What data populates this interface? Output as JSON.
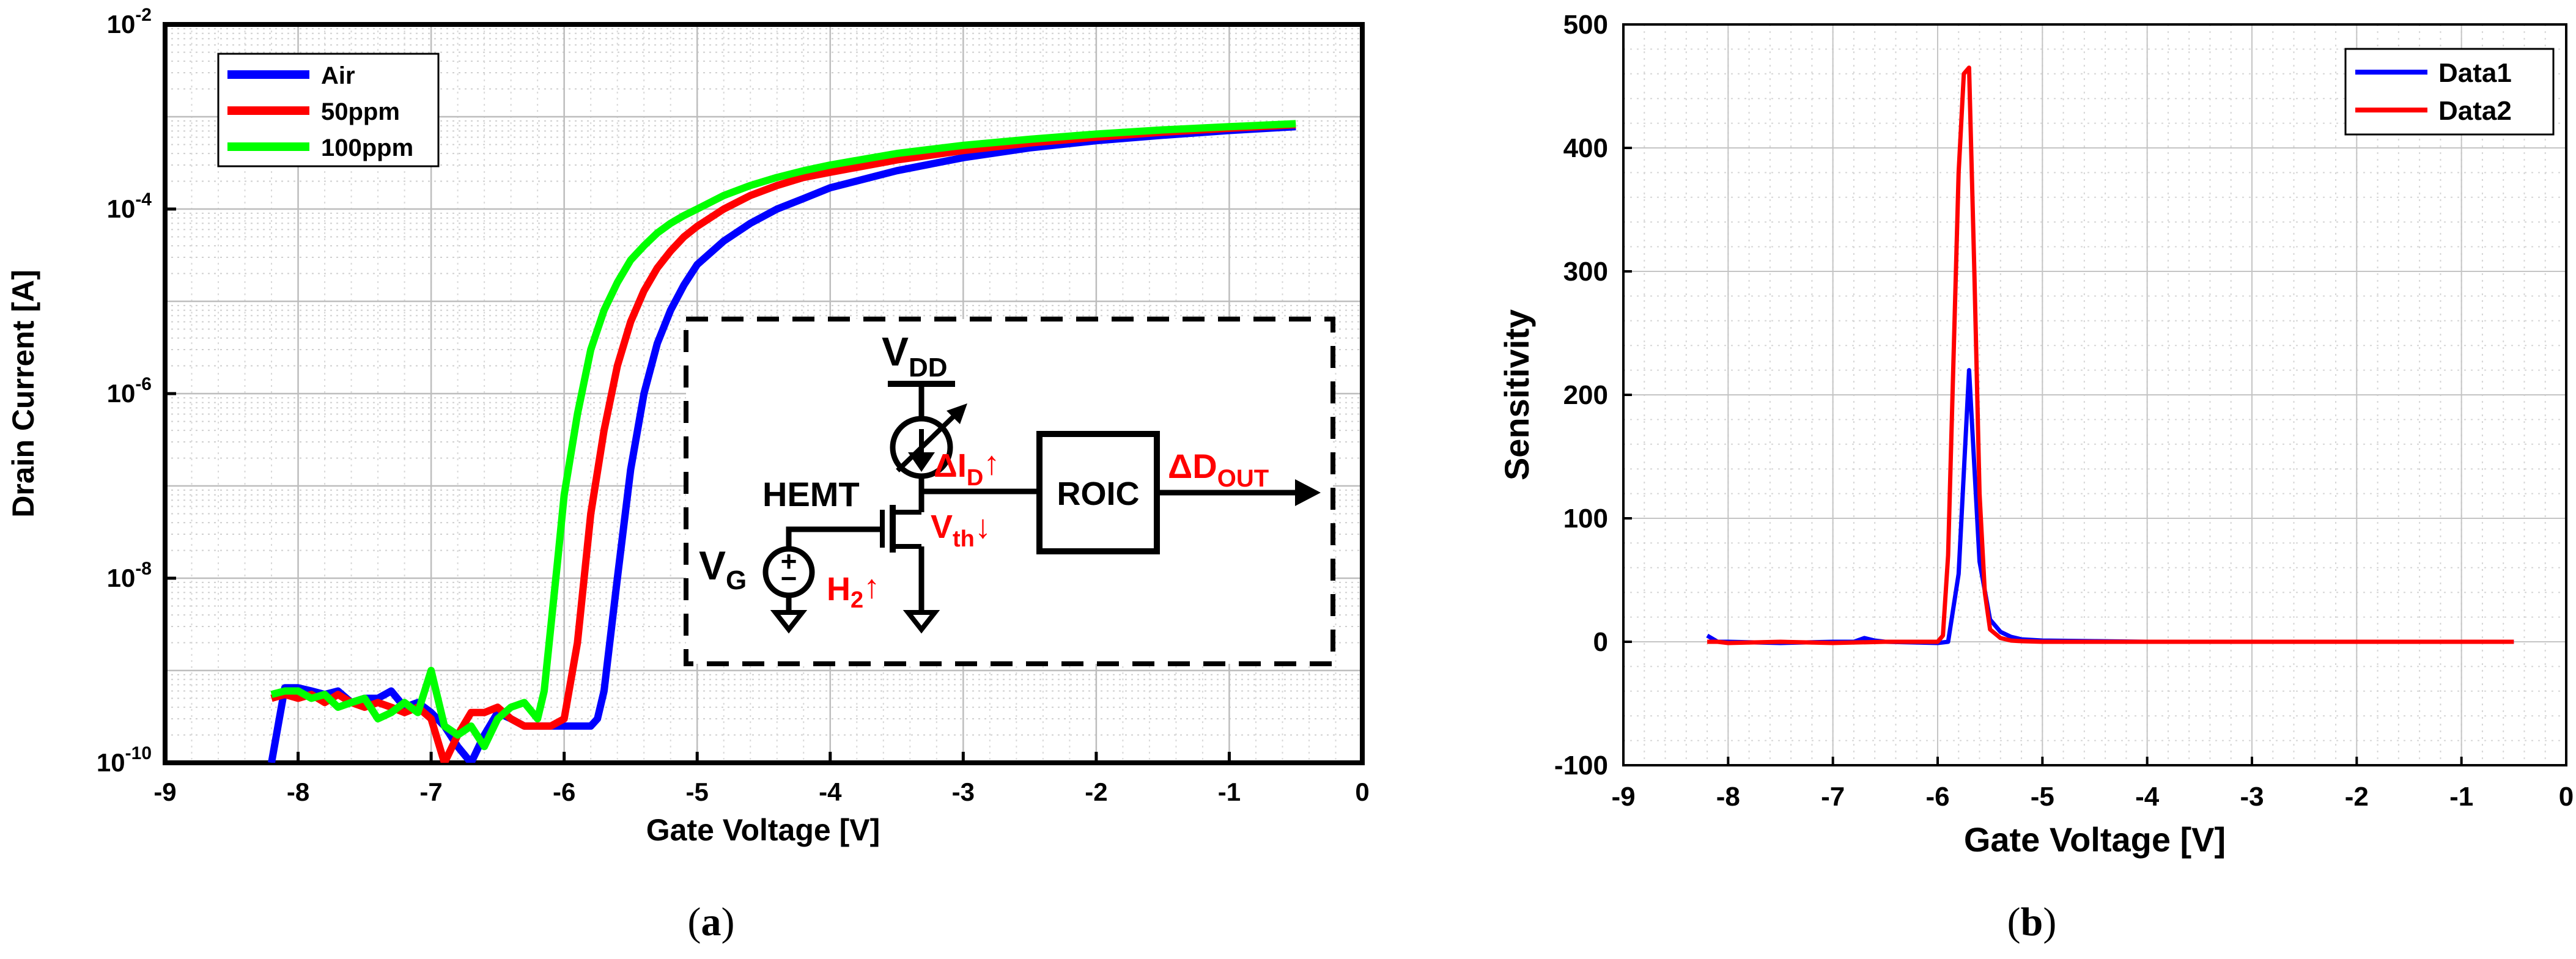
{
  "colors": {
    "blue": "#0000ff",
    "red": "#ff0000",
    "green": "#00ff00",
    "black": "#000000",
    "annot": "#ff0000"
  },
  "panels": {
    "a": "a",
    "b": "b"
  },
  "chart_data": [
    {
      "id": "a",
      "type": "line",
      "title": "",
      "xlabel": "Gate Voltage [V]",
      "ylabel": "Drain Current [A]",
      "yscale": "log",
      "xlim": [
        -9,
        0
      ],
      "ylim": [
        1e-10,
        0.01
      ],
      "xticks": [
        -9,
        -8,
        -7,
        -6,
        -5,
        -4,
        -3,
        -2,
        -1,
        0
      ],
      "yticks": [
        {
          "value": 1e-10,
          "base": "10",
          "exp": "-10"
        },
        {
          "value": 1e-08,
          "base": "10",
          "exp": "-8"
        },
        {
          "value": 1e-06,
          "base": "10",
          "exp": "-6"
        },
        {
          "value": 0.0001,
          "base": "10",
          "exp": "-4"
        },
        {
          "value": 0.01,
          "base": "10",
          "exp": "-2"
        }
      ],
      "grid": true,
      "legend_position": "top-left",
      "series": [
        {
          "name": "Air",
          "color": "#0000ff",
          "x": [
            -8.2,
            -8.1,
            -8.0,
            -7.9,
            -7.8,
            -7.7,
            -7.6,
            -7.5,
            -7.4,
            -7.3,
            -7.2,
            -7.1,
            -7.0,
            -6.9,
            -6.8,
            -6.7,
            -6.6,
            -6.5,
            -6.4,
            -6.3,
            -6.2,
            -6.1,
            -6.0,
            -5.9,
            -5.8,
            -5.75,
            -5.7,
            -5.6,
            -5.5,
            -5.4,
            -5.3,
            -5.2,
            -5.1,
            -5.0,
            -4.8,
            -4.6,
            -4.4,
            -4.2,
            -4.0,
            -3.5,
            -3.0,
            -2.5,
            -2.0,
            -1.5,
            -1.0,
            -0.5
          ],
          "y": [
            1e-10,
            6.5e-10,
            6.5e-10,
            6e-10,
            5.5e-10,
            6e-10,
            4.5e-10,
            5e-10,
            5e-10,
            6e-10,
            4e-10,
            4.5e-10,
            3.5e-10,
            2.5e-10,
            1.5e-10,
            1e-10,
            2e-10,
            3.5e-10,
            3e-10,
            2.5e-10,
            2.5e-10,
            2.5e-10,
            2.5e-10,
            2.5e-10,
            2.5e-10,
            3e-10,
            6e-10,
            1e-08,
            1.5e-07,
            1e-06,
            3.5e-06,
            8e-06,
            1.5e-05,
            2.5e-05,
            4.5e-05,
            7e-05,
            0.0001,
            0.00013,
            0.00017,
            0.00026,
            0.00036,
            0.00046,
            0.00055,
            0.00063,
            0.00071,
            0.00078
          ]
        },
        {
          "name": "50ppm",
          "color": "#ff0000",
          "x": [
            -8.2,
            -8.1,
            -8.0,
            -7.9,
            -7.8,
            -7.7,
            -7.6,
            -7.5,
            -7.4,
            -7.3,
            -7.2,
            -7.1,
            -7.0,
            -6.9,
            -6.8,
            -6.7,
            -6.6,
            -6.5,
            -6.4,
            -6.3,
            -6.2,
            -6.1,
            -6.0,
            -5.9,
            -5.85,
            -5.8,
            -5.7,
            -5.6,
            -5.5,
            -5.4,
            -5.3,
            -5.2,
            -5.1,
            -5.0,
            -4.8,
            -4.6,
            -4.4,
            -4.2,
            -4.0,
            -3.5,
            -3.0,
            -2.5,
            -2.0,
            -1.5,
            -1.0,
            -0.5
          ],
          "y": [
            5e-10,
            5.5e-10,
            5e-10,
            5.5e-10,
            4.5e-10,
            5.5e-10,
            4.5e-10,
            4e-10,
            4.5e-10,
            4e-10,
            3.5e-10,
            4e-10,
            3e-10,
            1e-10,
            2e-10,
            3.5e-10,
            3.5e-10,
            4e-10,
            3e-10,
            2.5e-10,
            2.5e-10,
            2.5e-10,
            3e-10,
            2e-09,
            1e-08,
            5e-08,
            4e-07,
            2e-06,
            6e-06,
            1.3e-05,
            2.3e-05,
            3.5e-05,
            5e-05,
            6.5e-05,
            0.0001,
            0.00014,
            0.00018,
            0.00022,
            0.00025,
            0.00034,
            0.00043,
            0.00052,
            0.0006,
            0.00068,
            0.00075,
            0.00082
          ]
        },
        {
          "name": "100ppm",
          "color": "#00ff00",
          "x": [
            -8.2,
            -8.1,
            -8.0,
            -7.9,
            -7.8,
            -7.7,
            -7.6,
            -7.5,
            -7.4,
            -7.3,
            -7.2,
            -7.1,
            -7.0,
            -6.9,
            -6.8,
            -6.7,
            -6.6,
            -6.5,
            -6.4,
            -6.3,
            -6.2,
            -6.15,
            -6.1,
            -6.05,
            -6.0,
            -5.9,
            -5.8,
            -5.7,
            -5.6,
            -5.5,
            -5.4,
            -5.3,
            -5.2,
            -5.1,
            -5.0,
            -4.8,
            -4.6,
            -4.4,
            -4.2,
            -4.0,
            -3.5,
            -3.0,
            -2.5,
            -2.0,
            -1.5,
            -1.0,
            -0.5
          ],
          "y": [
            5.5e-10,
            6e-10,
            6e-10,
            5e-10,
            5.5e-10,
            4e-10,
            4.5e-10,
            5e-10,
            3e-10,
            3.5e-10,
            4.5e-10,
            3.5e-10,
            1e-09,
            2.5e-10,
            2e-10,
            2.5e-10,
            1.5e-10,
            3e-10,
            4e-10,
            4.5e-10,
            3e-10,
            6e-10,
            3e-09,
            1.5e-08,
            8e-08,
            6e-07,
            3e-06,
            8e-06,
            1.6e-05,
            2.8e-05,
            4e-05,
            5.5e-05,
            7e-05,
            8.5e-05,
            0.0001,
            0.00014,
            0.00018,
            0.00022,
            0.00026,
            0.0003,
            0.0004,
            0.00049,
            0.00057,
            0.00065,
            0.00072,
            0.00078,
            0.00084
          ]
        }
      ],
      "inset": {
        "vdd": {
          "main": "V",
          "sub": "DD"
        },
        "hemt": "HEMT",
        "vg": {
          "main": "V",
          "sub": "G"
        },
        "delta_id": {
          "main": "ΔI",
          "sub": "D",
          "arrow": "↑"
        },
        "vth": {
          "main": "V",
          "sub": "th",
          "arrow": "↓"
        },
        "h2": {
          "main": "H",
          "sub": "2",
          "arrow": "↑"
        },
        "roic": "ROIC",
        "delta_dout": {
          "main": "ΔD",
          "sub": "OUT"
        }
      }
    },
    {
      "id": "b",
      "type": "line",
      "title": "",
      "xlabel": "Gate Voltage [V]",
      "ylabel": "Sensitivity",
      "xlim": [
        -9,
        0
      ],
      "ylim": [
        -100,
        500
      ],
      "xticks": [
        -9,
        -8,
        -7,
        -6,
        -5,
        -4,
        -3,
        -2,
        -1,
        0
      ],
      "yticks": [
        -100,
        0,
        100,
        200,
        300,
        400,
        500
      ],
      "grid": true,
      "legend_position": "top-right",
      "series": [
        {
          "name": "Data1",
          "color": "#0000ff",
          "x": [
            -8.2,
            -8.1,
            -8.0,
            -7.5,
            -7.0,
            -6.8,
            -6.7,
            -6.6,
            -6.5,
            -6.0,
            -5.9,
            -5.8,
            -5.7,
            -5.6,
            -5.5,
            -5.4,
            -5.3,
            -5.2,
            -5.0,
            -4.5,
            -4.0,
            -3.0,
            -2.0,
            -1.0,
            -0.5
          ],
          "y": [
            5,
            0,
            0,
            -1,
            0,
            0,
            3,
            1,
            0,
            -1,
            0,
            55,
            220,
            65,
            18,
            8,
            4,
            2,
            1,
            0.5,
            0,
            0,
            0,
            0,
            0
          ]
        },
        {
          "name": "Data2",
          "color": "#ff0000",
          "x": [
            -8.2,
            -8.1,
            -8.0,
            -7.5,
            -7.0,
            -6.5,
            -6.0,
            -5.95,
            -5.9,
            -5.8,
            -5.75,
            -5.7,
            -5.65,
            -5.6,
            -5.55,
            -5.5,
            -5.4,
            -5.3,
            -5.2,
            -5.0,
            -4.0,
            -3.0,
            -2.0,
            -1.0,
            -0.5
          ],
          "y": [
            0,
            0,
            -1,
            0,
            -1,
            0,
            0,
            5,
            70,
            380,
            460,
            465,
            300,
            120,
            40,
            10,
            3,
            1,
            0.5,
            0,
            0,
            0,
            0,
            0,
            0
          ]
        }
      ]
    }
  ]
}
